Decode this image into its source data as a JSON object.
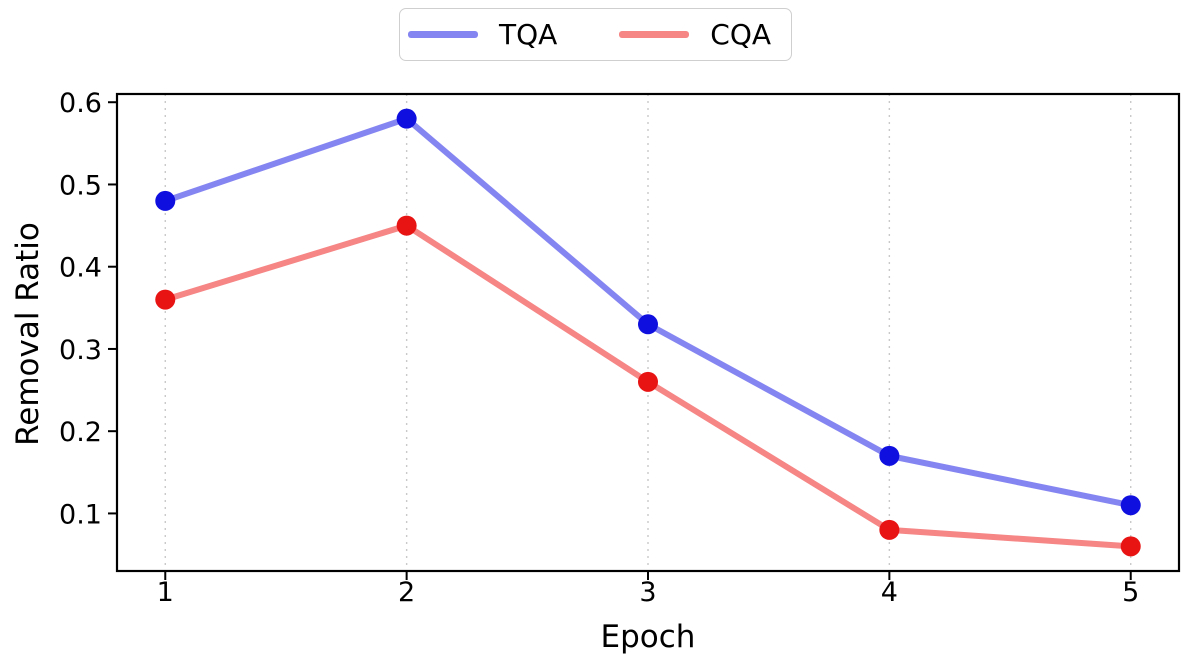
{
  "legend": {
    "items": [
      {
        "label": "TQA",
        "color": "#8585f2"
      },
      {
        "label": "CQA",
        "color": "#f68585"
      }
    ]
  },
  "chart_data": {
    "type": "line",
    "x": [
      1,
      2,
      3,
      4,
      5
    ],
    "series": [
      {
        "name": "TQA",
        "values": [
          0.48,
          0.58,
          0.33,
          0.17,
          0.11
        ],
        "line_color": "#8585f2",
        "marker_color": "#0f0fe0"
      },
      {
        "name": "CQA",
        "values": [
          0.36,
          0.45,
          0.26,
          0.08,
          0.06
        ],
        "line_color": "#f68585",
        "marker_color": "#e81414"
      }
    ],
    "title": "",
    "xlabel": "Epoch",
    "ylabel": "Removal Ratio",
    "xticks": {
      "values": [
        1,
        2,
        3,
        4,
        5
      ],
      "labels": [
        "1",
        "2",
        "3",
        "4",
        "5"
      ]
    },
    "yticks": {
      "values": [
        0.1,
        0.2,
        0.3,
        0.4,
        0.5,
        0.6
      ],
      "labels": [
        "0.1",
        "0.2",
        "0.3",
        "0.4",
        "0.5",
        "0.6"
      ]
    },
    "xlim": [
      0.8,
      5.2
    ],
    "ylim": [
      0.03,
      0.61
    ],
    "grid": "vertical-dotted",
    "grid_color": "#c9c9c9",
    "legend_position": "top-center"
  }
}
